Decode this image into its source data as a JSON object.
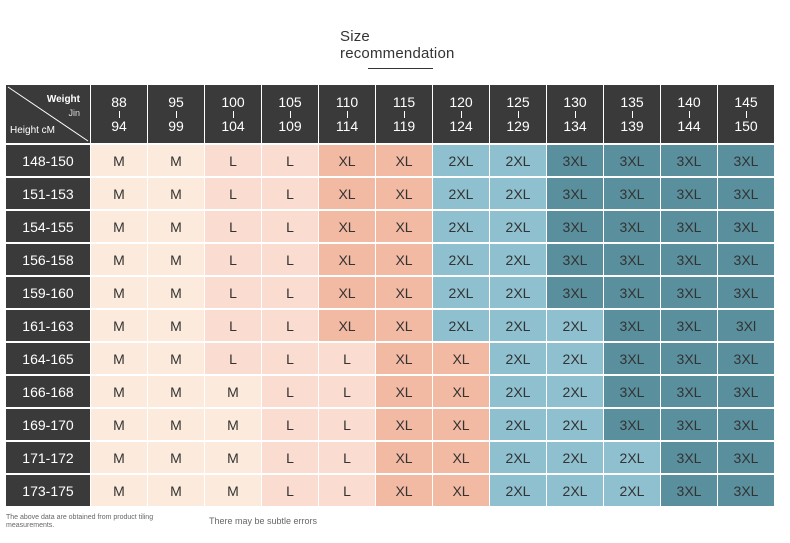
{
  "title": {
    "line1": "Size",
    "line2": "recommendation"
  },
  "table": {
    "corner": {
      "weight_label": "Weight",
      "weight_unit": "Jin",
      "height_label": "Height cM"
    },
    "weight_columns": [
      {
        "top": "88",
        "bottom": "94"
      },
      {
        "top": "95",
        "bottom": "99"
      },
      {
        "top": "100",
        "bottom": "104"
      },
      {
        "top": "105",
        "bottom": "109"
      },
      {
        "top": "110",
        "bottom": "114"
      },
      {
        "top": "115",
        "bottom": "119"
      },
      {
        "top": "120",
        "bottom": "124"
      },
      {
        "top": "125",
        "bottom": "129"
      },
      {
        "top": "130",
        "bottom": "134"
      },
      {
        "top": "135",
        "bottom": "139"
      },
      {
        "top": "140",
        "bottom": "144"
      },
      {
        "top": "145",
        "bottom": "150"
      }
    ],
    "rows": [
      {
        "height": "148-150",
        "sizes": [
          "M",
          "M",
          "L",
          "L",
          "XL",
          "XL",
          "2XL",
          "2XL",
          "3XL",
          "3XL",
          "3XL",
          "3XL"
        ]
      },
      {
        "height": "151-153",
        "sizes": [
          "M",
          "M",
          "L",
          "L",
          "XL",
          "XL",
          "2XL",
          "2XL",
          "3XL",
          "3XL",
          "3XL",
          "3XL"
        ]
      },
      {
        "height": "154-155",
        "sizes": [
          "M",
          "M",
          "L",
          "L",
          "XL",
          "XL",
          "2XL",
          "2XL",
          "3XL",
          "3XL",
          "3XL",
          "3XL"
        ]
      },
      {
        "height": "156-158",
        "sizes": [
          "M",
          "M",
          "L",
          "L",
          "XL",
          "XL",
          "2XL",
          "2XL",
          "3XL",
          "3XL",
          "3XL",
          "3XL"
        ]
      },
      {
        "height": "159-160",
        "sizes": [
          "M",
          "M",
          "L",
          "L",
          "XL",
          "XL",
          "2XL",
          "2XL",
          "3XL",
          "3XL",
          "3XL",
          "3XL"
        ]
      },
      {
        "height": "161-163",
        "sizes": [
          "M",
          "M",
          "L",
          "L",
          "XL",
          "XL",
          "2XL",
          "2XL",
          "2XL",
          "3XL",
          "3XL",
          "3Xl"
        ]
      },
      {
        "height": "164-165",
        "sizes": [
          "M",
          "M",
          "L",
          "L",
          "L",
          "XL",
          "XL",
          "2XL",
          "2XL",
          "3XL",
          "3XL",
          "3XL"
        ]
      },
      {
        "height": "166-168",
        "sizes": [
          "M",
          "M",
          "M",
          "L",
          "L",
          "XL",
          "XL",
          "2XL",
          "2XL",
          "3XL",
          "3XL",
          "3XL"
        ]
      },
      {
        "height": "169-170",
        "sizes": [
          "M",
          "M",
          "M",
          "L",
          "L",
          "XL",
          "XL",
          "2XL",
          "2XL",
          "3XL",
          "3XL",
          "3XL"
        ]
      },
      {
        "height": "171-172",
        "sizes": [
          "M",
          "M",
          "M",
          "L",
          "L",
          "XL",
          "XL",
          "2XL",
          "2XL",
          "2XL",
          "3XL",
          "3XL"
        ]
      },
      {
        "height": "173-175",
        "sizes": [
          "M",
          "M",
          "M",
          "L",
          "L",
          "XL",
          "XL",
          "2XL",
          "2XL",
          "2XL",
          "3XL",
          "3XL"
        ]
      }
    ]
  },
  "footer": {
    "note_left": "The above data are obtained from product tiling measurements.",
    "note_right": "There may be subtle errors"
  },
  "colors": {
    "header_bg": "#3a3a3a",
    "size_M": "#fcebdc",
    "size_L": "#fbdcd0",
    "size_XL": "#f2b9a3",
    "size_2XL": "#8ec0cf",
    "size_3XL": "#5a8f9d"
  }
}
